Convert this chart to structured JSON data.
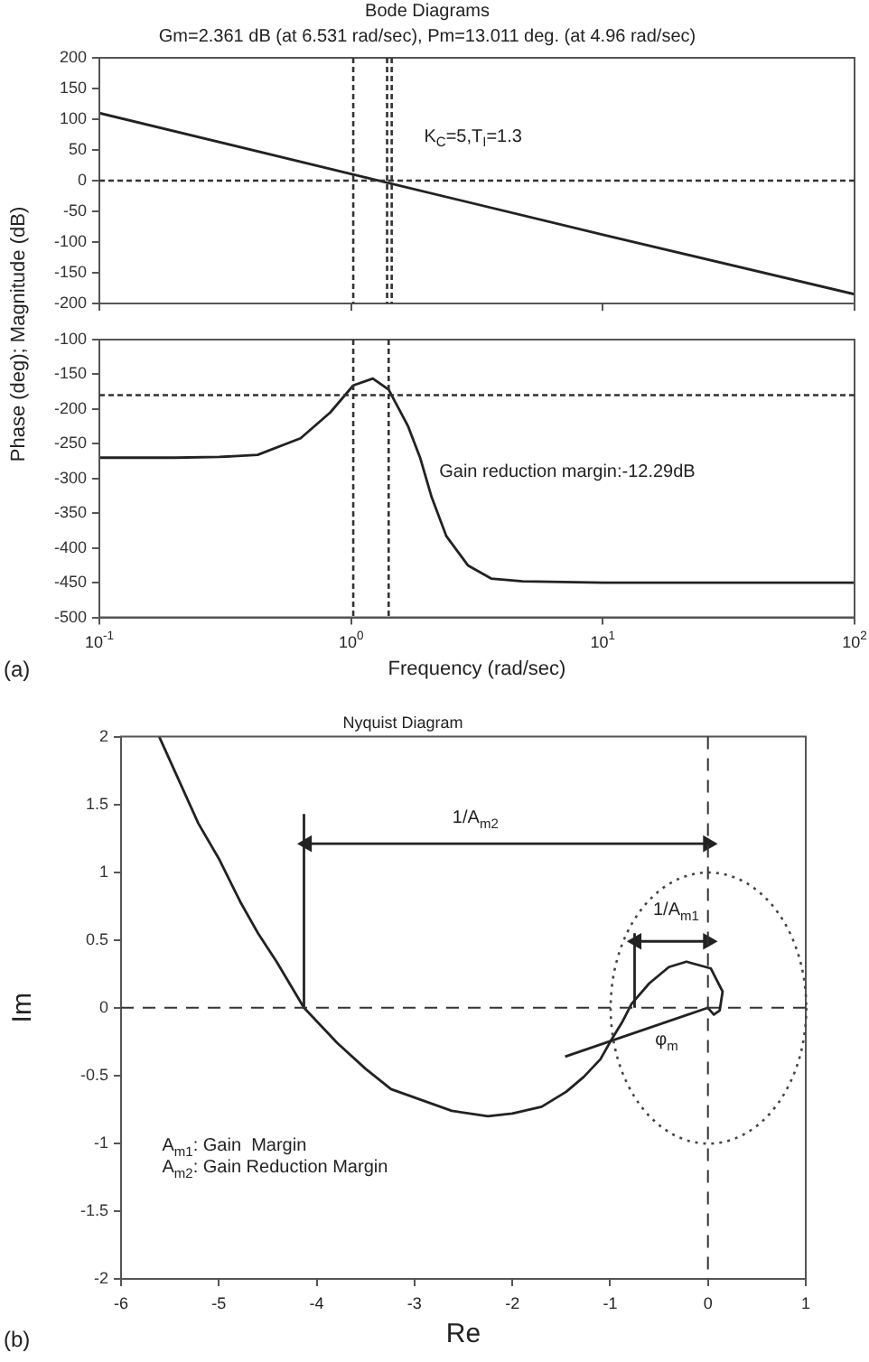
{
  "chart_data": [
    {
      "type": "line",
      "title": "Bode Diagrams",
      "subtitle": "Gm=2.361 dB (at 6.531 rad/sec), Pm=13.011 deg. (at 4.96 rad/sec)",
      "ylabel": "Phase (deg); Magnitude (dB)",
      "log": "x",
      "x": [
        0.1,
        1,
        10,
        100
      ],
      "series": [
        {
          "color": "#222222",
          "values": [
            110,
            11,
            -88,
            -185
          ]
        }
      ],
      "xlim": [
        0.1,
        100
      ],
      "xticks": [
        0.1,
        1,
        10,
        100
      ],
      "ylim": [
        -200,
        200
      ],
      "yticks": [
        -200,
        -150,
        -100,
        -50,
        0,
        50,
        100,
        150,
        200
      ],
      "tick_labels": "y",
      "ref_lines": [
        {
          "axis": "x",
          "value": 1.02,
          "line_style": "dotted"
        },
        {
          "axis": "x",
          "value": 1.39,
          "line_style": "dotted"
        },
        {
          "axis": "x",
          "value": 1.45,
          "line_style": "dotted"
        },
        {
          "axis": "y",
          "value": 0,
          "line_style": "dotted"
        }
      ],
      "annotations": [
        "K$_{C}$=5,T$_{I}$=1.3"
      ]
    },
    {
      "type": "line",
      "xlabel": "Frequency (rad/sec)",
      "log": "x",
      "x": [
        0.1,
        0.2,
        0.3,
        0.425,
        0.63,
        0.826,
        1.02,
        1.22,
        1.41,
        1.68,
        1.88,
        2.09,
        2.39,
        2.91,
        3.6,
        4.8,
        10,
        100
      ],
      "series": [
        {
          "color": "#222222",
          "values": [
            -270,
            -270,
            -269,
            -266,
            -242,
            -205,
            -166,
            -156,
            -172,
            -224,
            -270,
            -327,
            -383,
            -425,
            -444,
            -448,
            -450,
            -450
          ]
        }
      ],
      "xlim": [
        0.1,
        100
      ],
      "xticks": [
        {
          "value": 0.1,
          "label": "10$^{-1}$"
        },
        {
          "value": 1,
          "label": "10$^{0}$"
        },
        {
          "value": 10,
          "label": "10$^{1}$"
        },
        {
          "value": 100,
          "label": "10$^{2}$"
        }
      ],
      "ylim": [
        -500,
        -100
      ],
      "yticks": [
        -500,
        -450,
        -400,
        -350,
        -300,
        -250,
        -200,
        -150,
        -100
      ],
      "ref_lines": [
        {
          "axis": "x",
          "value": 1.02,
          "line_style": "dotted"
        },
        {
          "axis": "x",
          "value": 1.41,
          "line_style": "dotted"
        },
        {
          "axis": "y",
          "value": -180,
          "line_style": "dotted"
        }
      ],
      "annotations": [
        "Gain reduction margin:-12.29dB",
        "(a)"
      ]
    },
    {
      "type": "line",
      "title": "Nyquist Diagram",
      "xlabel": "Re",
      "ylabel": "Im",
      "series": [
        {
          "color": "#222222",
          "x": [
            -5.61,
            -5.21,
            -5.0,
            -4.78,
            -4.6,
            -4.41,
            -4.13,
            -3.79,
            -3.5,
            -3.24,
            -2.62,
            -2.25,
            -2.0,
            -1.7,
            -1.45,
            -1.27,
            -1.1,
            -0.99,
            -0.88,
            -0.78,
            -0.6,
            -0.4,
            -0.22,
            0.03,
            0.15,
            0.12,
            0.06,
            0
          ],
          "values": [
            2,
            1.36,
            1.1,
            0.78,
            0.55,
            0.34,
            0,
            -0.26,
            -0.45,
            -0.6,
            -0.76,
            -0.8,
            -0.78,
            -0.73,
            -0.62,
            -0.51,
            -0.38,
            -0.24,
            -0.11,
            0.03,
            0.18,
            0.3,
            0.34,
            0.29,
            0.12,
            -0.02,
            -0.05,
            0
          ]
        },
        {
          "color": "#222222",
          "x": [
            -1.46,
            0
          ],
          "values": [
            -0.36,
            0
          ]
        },
        {
          "color": "#222222",
          "x": [
            -4.13,
            -4.13
          ],
          "values": [
            0,
            1.43
          ]
        },
        {
          "color": "#222222",
          "x": [
            -0.75,
            -0.75
          ],
          "values": [
            0,
            0.55
          ]
        },
        {
          "color": "#222222",
          "marker": "triangle",
          "x": [
            -4.1,
            0
          ],
          "values": [
            1.21,
            1.21
          ]
        },
        {
          "color": "#222222",
          "marker": "triangle",
          "x": [
            -0.73,
            0
          ],
          "values": [
            0.49,
            0.49
          ]
        }
      ],
      "xlim": [
        -6,
        1
      ],
      "xticks": [
        -6,
        -5,
        -4,
        -3,
        -2,
        -1,
        0,
        1
      ],
      "ylim": [
        -2,
        2
      ],
      "yticks": [
        -2,
        -1.5,
        -1,
        -0.5,
        0,
        0.5,
        1,
        1.5,
        2
      ],
      "ref_lines": [
        {
          "axis": "x",
          "value": 0,
          "line_style": "dashed"
        },
        {
          "axis": "y",
          "value": 0,
          "line_style": "dashed"
        }
      ],
      "annotations": [
        "1/A$_{m2}$",
        "1/A$_{m1}$",
        "φ$_{m}$",
        "A$_{m1}$: Gain  Margin",
        "A$_{m2}$: Gain Reduction Margin",
        "(b)"
      ]
    }
  ]
}
